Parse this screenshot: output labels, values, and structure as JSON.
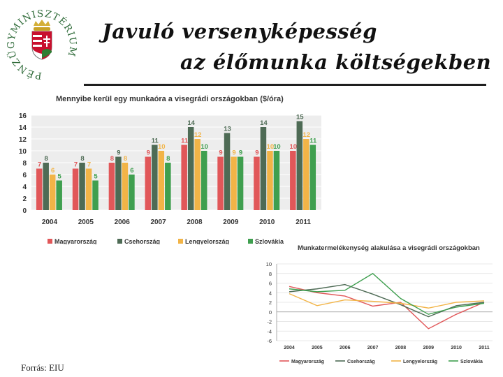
{
  "header": {
    "title_line1": "Javuló versenyképesség",
    "title_line2": "az élőmunka költségekben"
  },
  "logo": {
    "text": "PÉNZÜGYMINISZTÉRIUM"
  },
  "footer": {
    "source": "Forrás: EIU"
  },
  "colors": {
    "hu": "#e15759",
    "cz": "#4e6b55",
    "pl": "#f2b447",
    "sk": "#3f9f4f"
  },
  "chart_data": [
    {
      "type": "bar",
      "title": "Mennyibe kerül egy munkaóra a visegrádi országokban ($/óra)",
      "categories": [
        "2004",
        "2005",
        "2006",
        "2007",
        "2008",
        "2009",
        "2010",
        "2011"
      ],
      "ylim": [
        0,
        16
      ],
      "yticks": [
        0,
        2,
        4,
        6,
        8,
        10,
        12,
        14,
        16
      ],
      "legend_position": "bottom",
      "series": [
        {
          "name": "Magyarország",
          "values": [
            7,
            7,
            8,
            9,
            11,
            9,
            9,
            10
          ]
        },
        {
          "name": "Csehország",
          "values": [
            8,
            8,
            9,
            11,
            14,
            13,
            14,
            15
          ]
        },
        {
          "name": "Lengyelország",
          "values": [
            6,
            7,
            8,
            10,
            12,
            9,
            10,
            12
          ]
        },
        {
          "name": "Szlovákia",
          "values": [
            5,
            5,
            6,
            8,
            10,
            9,
            10,
            11
          ]
        }
      ]
    },
    {
      "type": "line",
      "title": "Munkatermelékenység alakulása a visegrádi országokban",
      "categories": [
        "2004",
        "2005",
        "2006",
        "2007",
        "2008",
        "2009",
        "2010",
        "2011"
      ],
      "ylim": [
        -6,
        10
      ],
      "yticks": [
        -6,
        -4,
        -2,
        0,
        2,
        4,
        6,
        8,
        10
      ],
      "legend_position": "bottom",
      "series": [
        {
          "name": "Magyarország",
          "values": [
            5.3,
            4.0,
            3.3,
            1.2,
            2.0,
            -3.5,
            -0.5,
            2.0
          ]
        },
        {
          "name": "Csehország",
          "values": [
            4.2,
            4.8,
            5.7,
            3.7,
            1.5,
            -1.0,
            1.3,
            2.0
          ]
        },
        {
          "name": "Lengyelország",
          "values": [
            3.8,
            1.3,
            2.5,
            2.2,
            1.8,
            0.8,
            2.0,
            2.3
          ]
        },
        {
          "name": "Szlovákia",
          "values": [
            4.8,
            4.2,
            4.5,
            8.0,
            2.8,
            -0.5,
            1.0,
            1.8
          ]
        }
      ]
    }
  ]
}
